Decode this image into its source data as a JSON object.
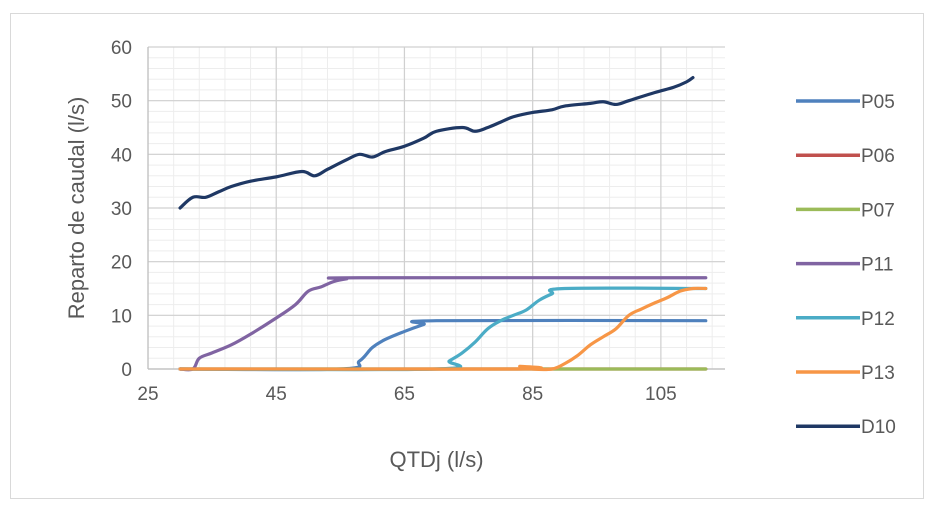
{
  "chart_data": {
    "type": "line",
    "title": "",
    "xlabel": "QTDj (l/s)",
    "ylabel": "Reparto de caudal (l/s)",
    "xlim": [
      25,
      115
    ],
    "ylim": [
      0,
      60
    ],
    "x_ticks": [
      25,
      45,
      65,
      85,
      105
    ],
    "y_ticks": [
      0,
      10,
      20,
      30,
      40,
      50,
      60
    ],
    "grid": "major and minor",
    "legend_position": "right",
    "series": [
      {
        "name": "P05",
        "color": "#4f81bd",
        "points": [
          [
            30,
            0
          ],
          [
            55,
            0
          ],
          [
            58,
            1.5
          ],
          [
            60,
            4
          ],
          [
            62,
            5.5
          ],
          [
            65,
            7
          ],
          [
            68,
            8.3
          ],
          [
            70,
            9
          ],
          [
            112,
            9
          ]
        ]
      },
      {
        "name": "P06",
        "color": "#c0504d",
        "points": [
          [
            30,
            0
          ],
          [
            112,
            0
          ]
        ]
      },
      {
        "name": "P07",
        "color": "#9bbb59",
        "points": [
          [
            30,
            0
          ],
          [
            112,
            0
          ]
        ]
      },
      {
        "name": "P11",
        "color": "#8064a2",
        "points": [
          [
            30,
            0
          ],
          [
            32,
            0
          ],
          [
            33,
            2
          ],
          [
            35,
            3
          ],
          [
            38,
            4.5
          ],
          [
            41,
            6.5
          ],
          [
            45,
            9.5
          ],
          [
            48,
            12
          ],
          [
            50,
            14.5
          ],
          [
            52,
            15.3
          ],
          [
            54,
            16.3
          ],
          [
            56,
            16.8
          ],
          [
            58,
            17
          ],
          [
            112,
            17
          ]
        ]
      },
      {
        "name": "P12",
        "color": "#4bacc6",
        "points": [
          [
            30,
            0
          ],
          [
            70,
            0
          ],
          [
            72,
            1.5
          ],
          [
            74,
            3
          ],
          [
            76,
            5
          ],
          [
            78,
            7.5
          ],
          [
            80,
            9
          ],
          [
            82,
            10
          ],
          [
            84,
            11
          ],
          [
            86,
            12.8
          ],
          [
            88,
            14
          ],
          [
            90,
            15
          ],
          [
            112,
            15
          ]
        ]
      },
      {
        "name": "P13",
        "color": "#f79646",
        "points": [
          [
            30,
            0
          ],
          [
            82,
            0
          ],
          [
            83,
            0.5
          ],
          [
            85,
            0
          ],
          [
            88,
            0
          ],
          [
            90,
            1
          ],
          [
            92,
            2.5
          ],
          [
            94,
            4.5
          ],
          [
            96,
            6
          ],
          [
            98,
            7.5
          ],
          [
            100,
            10
          ],
          [
            102,
            11.2
          ],
          [
            104,
            12.3
          ],
          [
            106,
            13.3
          ],
          [
            108,
            14.5
          ],
          [
            110,
            15
          ],
          [
            112,
            15
          ]
        ]
      },
      {
        "name": "D10",
        "color": "#1f3864",
        "points": [
          [
            30,
            30
          ],
          [
            32,
            32
          ],
          [
            34,
            32
          ],
          [
            36,
            33
          ],
          [
            38,
            34
          ],
          [
            41,
            35
          ],
          [
            45,
            35.8
          ],
          [
            49,
            36.8
          ],
          [
            51,
            36
          ],
          [
            53,
            37.2
          ],
          [
            56,
            39
          ],
          [
            58,
            40
          ],
          [
            60,
            39.5
          ],
          [
            62,
            40.5
          ],
          [
            65,
            41.5
          ],
          [
            68,
            43
          ],
          [
            70,
            44.3
          ],
          [
            74,
            45
          ],
          [
            76,
            44.3
          ],
          [
            78,
            45
          ],
          [
            80,
            46
          ],
          [
            82,
            47
          ],
          [
            85,
            47.8
          ],
          [
            88,
            48.3
          ],
          [
            90,
            49
          ],
          [
            94,
            49.5
          ],
          [
            96,
            49.8
          ],
          [
            98,
            49.3
          ],
          [
            100,
            50
          ],
          [
            104,
            51.5
          ],
          [
            107,
            52.5
          ],
          [
            109,
            53.5
          ],
          [
            110,
            54.3
          ]
        ]
      }
    ]
  }
}
